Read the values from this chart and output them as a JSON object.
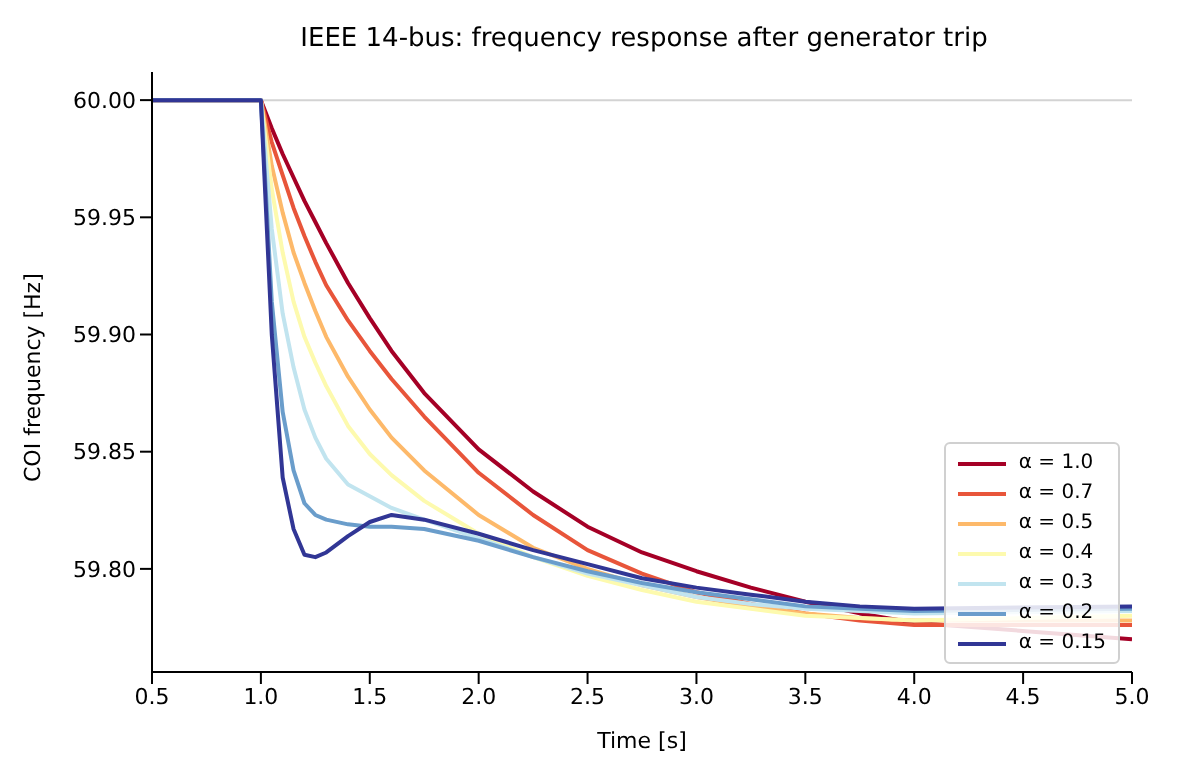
{
  "chart_data": {
    "type": "line",
    "title": "IEEE 14-bus: frequency response after generator trip",
    "xlabel": "Time [s]",
    "ylabel": "COI frequency [Hz]",
    "x": [
      0.5,
      1.0,
      1.05,
      1.1,
      1.15,
      1.2,
      1.25,
      1.3,
      1.4,
      1.5,
      1.6,
      1.75,
      2.0,
      2.25,
      2.5,
      2.75,
      3.0,
      3.25,
      3.5,
      3.75,
      4.0,
      5.0
    ],
    "series": [
      {
        "name": "α = 1.0",
        "color": "#a50026",
        "values": [
          60,
          60,
          59.988,
          59.977,
          59.967,
          59.957,
          59.948,
          59.939,
          59.922,
          59.907,
          59.893,
          59.875,
          59.851,
          59.833,
          59.818,
          59.807,
          59.799,
          59.792,
          59.786,
          59.781,
          59.777,
          59.77
        ]
      },
      {
        "name": "α = 0.7",
        "color": "#e8553a",
        "values": [
          60,
          60,
          59.982,
          59.968,
          59.954,
          59.942,
          59.931,
          59.921,
          59.906,
          59.893,
          59.881,
          59.865,
          59.841,
          59.823,
          59.808,
          59.798,
          59.79,
          59.785,
          59.781,
          59.778,
          59.776,
          59.776
        ]
      },
      {
        "name": "α = 0.5",
        "color": "#fdb96a",
        "values": [
          60,
          60,
          59.972,
          59.952,
          59.935,
          59.922,
          59.91,
          59.899,
          59.882,
          59.868,
          59.856,
          59.842,
          59.823,
          59.809,
          59.8,
          59.793,
          59.788,
          59.784,
          59.781,
          59.779,
          59.778,
          59.778
        ]
      },
      {
        "name": "α = 0.4",
        "color": "#fdfaae",
        "values": [
          60,
          60,
          59.962,
          59.935,
          59.914,
          59.899,
          59.888,
          59.878,
          59.861,
          59.849,
          59.84,
          59.829,
          59.815,
          59.805,
          59.797,
          59.791,
          59.786,
          59.783,
          59.78,
          59.779,
          59.778,
          59.78
        ]
      },
      {
        "name": "α = 0.3",
        "color": "#c1e4ef",
        "values": [
          60,
          60,
          59.945,
          59.909,
          59.886,
          59.868,
          59.856,
          59.847,
          59.836,
          59.831,
          59.826,
          59.821,
          59.813,
          59.805,
          59.798,
          59.793,
          59.788,
          59.785,
          59.783,
          59.782,
          59.781,
          59.782
        ]
      },
      {
        "name": "α = 0.2",
        "color": "#6a9dcb",
        "values": [
          60,
          60,
          59.914,
          59.867,
          59.842,
          59.828,
          59.823,
          59.821,
          59.819,
          59.818,
          59.818,
          59.817,
          59.812,
          59.805,
          59.799,
          59.794,
          59.79,
          59.787,
          59.784,
          59.783,
          59.782,
          59.783
        ]
      },
      {
        "name": "α = 0.15",
        "color": "#313695",
        "values": [
          60,
          60,
          59.9,
          59.839,
          59.817,
          59.806,
          59.805,
          59.807,
          59.814,
          59.82,
          59.823,
          59.821,
          59.815,
          59.808,
          59.802,
          59.796,
          59.792,
          59.789,
          59.786,
          59.784,
          59.783,
          59.784
        ]
      }
    ],
    "xlim": [
      0.5,
      5.0
    ],
    "xticks": [
      {
        "value": 0.5,
        "label": "0.5"
      },
      {
        "value": 1,
        "label": "1.0"
      },
      {
        "value": 1.5,
        "label": "1.5"
      },
      {
        "value": 2,
        "label": "2.0"
      },
      {
        "value": 2.5,
        "label": "2.5"
      },
      {
        "value": 3,
        "label": "3.0"
      },
      {
        "value": 3.5,
        "label": "3.5"
      },
      {
        "value": 4,
        "label": "4.0"
      },
      {
        "value": 4.5,
        "label": "4.5"
      },
      {
        "value": 5,
        "label": "5.0"
      }
    ],
    "ylim": [
      59.756,
      60.012
    ],
    "yticks": [
      {
        "value": 59.8,
        "label": "59.80"
      },
      {
        "value": 59.85,
        "label": "59.85"
      },
      {
        "value": 59.9,
        "label": "59.90"
      },
      {
        "value": 59.95,
        "label": "59.95"
      },
      {
        "value": 60,
        "label": "60.00"
      }
    ],
    "ref_lines": [
      {
        "axis": "y",
        "value": 60,
        "color": "#d3d3d3"
      }
    ],
    "legend": "bottom right",
    "marker": "none",
    "line_style": "solid",
    "grid": false
  }
}
